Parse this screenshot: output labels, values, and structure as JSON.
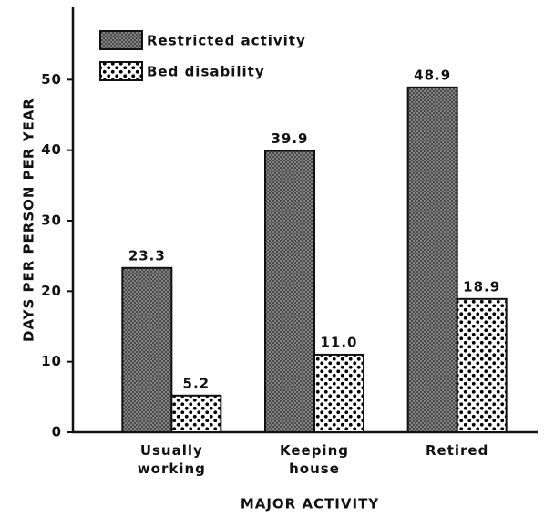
{
  "chart_data": {
    "type": "bar",
    "x_label": "MAJOR ACTIVITY",
    "y_label": "DAYS PER PERSON PER YEAR",
    "categories": [
      "Usually working",
      "Keeping house",
      "Retired"
    ],
    "series": [
      {
        "name": "Restricted activity",
        "color": "#7a7a7a",
        "pattern": "crosshatch",
        "values": [
          23.3,
          39.9,
          48.9
        ],
        "value_labels": [
          "23.3",
          "39.9",
          "48.9"
        ]
      },
      {
        "name": "Bed disability",
        "color": "#000000",
        "pattern": "dots",
        "values": [
          5.2,
          11.0,
          18.9
        ],
        "value_labels": [
          "5.2",
          "11.0",
          "18.9"
        ]
      }
    ],
    "ylim": [
      0,
      60
    ],
    "yticks": [
      0,
      10,
      20,
      30,
      40,
      50
    ],
    "grid": false,
    "legend": "upper left"
  }
}
